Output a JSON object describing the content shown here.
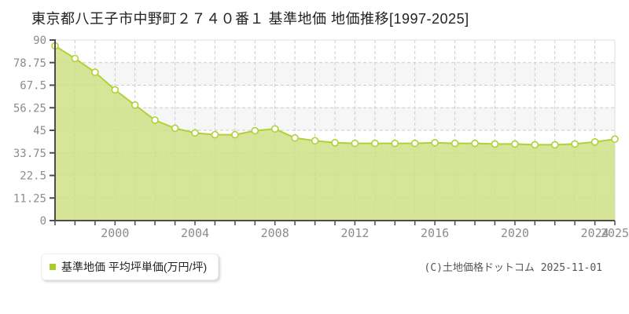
{
  "header": {
    "title": "東京都八王子市中野町２７４０番１ 基準地価 地価推移[1997-2025]"
  },
  "legend": {
    "label": "基準地価 平均坪単価(万円/坪)"
  },
  "footer": {
    "copyright": "(C)土地価格ドットコム 2025-11-01"
  },
  "chart_data": {
    "type": "area",
    "title": "東京都八王子市中野町２７４０番１ 基準地価 地価推移[1997-2025]",
    "xlabel": "",
    "ylabel": "平均坪単価(万円/坪)",
    "x": [
      1997,
      1998,
      1999,
      2000,
      2001,
      2002,
      2003,
      2004,
      2005,
      2006,
      2007,
      2008,
      2009,
      2010,
      2011,
      2012,
      2013,
      2014,
      2015,
      2016,
      2017,
      2018,
      2019,
      2020,
      2021,
      2022,
      2023,
      2024,
      2025
    ],
    "series": [
      {
        "name": "基準地価 平均坪単価(万円/坪)",
        "values": [
          87.1,
          80.8,
          73.9,
          65.2,
          57.6,
          50.1,
          46.0,
          43.7,
          42.8,
          42.8,
          44.8,
          45.7,
          41.2,
          39.8,
          38.8,
          38.5,
          38.5,
          38.5,
          38.5,
          38.8,
          38.5,
          38.5,
          38.2,
          38.2,
          37.8,
          37.8,
          38.2,
          39.2,
          40.6
        ]
      }
    ],
    "ylim": [
      0,
      90
    ],
    "yticks": [
      0,
      11.25,
      22.5,
      33.75,
      45,
      56.25,
      67.5,
      78.75,
      90
    ],
    "xtick_labels": [
      2000,
      2004,
      2008,
      2012,
      2016,
      2020,
      2024,
      2025
    ],
    "grid": "dashed",
    "legend_position": "bottom-left",
    "colors": {
      "line": "#b2d138",
      "fill": "#cfe186",
      "marker_fill": "#ffffff",
      "legend_bullet": "#a9cd26",
      "axis": "#4d4d4d",
      "grid": "#cccccc",
      "band": "#f6f6f6",
      "plot_border": "#dddddd",
      "tick_label": "#8c8c8c"
    }
  }
}
